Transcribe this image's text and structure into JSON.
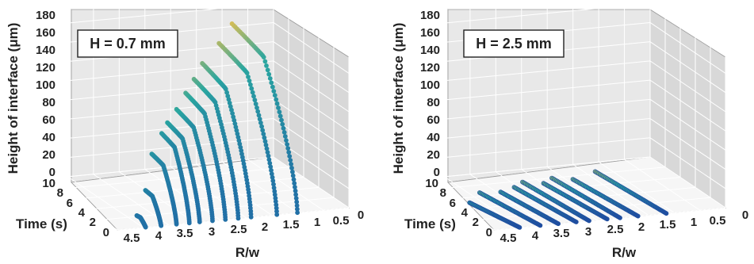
{
  "chart_data": [
    {
      "type": "scatter3d",
      "annotation": "H = 0.7 mm",
      "zlabel": "Height of interface (μm)",
      "ylabel": "Time (s)",
      "xlabel": "R/w",
      "ztick_labels": [
        "180",
        "160",
        "140",
        "120",
        "100",
        "80",
        "60",
        "40",
        "20",
        "0"
      ],
      "ytick_labels": [
        "10",
        "8",
        "6",
        "4",
        "2",
        "0"
      ],
      "xtick_labels": [
        "4.5",
        "4",
        "3.5",
        "3",
        "2.5",
        "2",
        "1.5",
        "1",
        "0.5",
        "0"
      ],
      "zlim": [
        0,
        180
      ],
      "ylim": [
        0,
        10
      ],
      "xlim": [
        0,
        4.5
      ],
      "grid": true,
      "colormap": [
        "#1f5fa8",
        "#2aa6a0",
        "#f2c14a"
      ],
      "series": [
        {
          "r": 4.05,
          "t_end": 0.5,
          "z_peak": 10
        },
        {
          "r": 3.75,
          "t_end": 1.4,
          "z_peak": 30
        },
        {
          "r": 3.45,
          "t_end": 2.6,
          "z_peak": 60
        },
        {
          "r": 3.2,
          "t_end": 3.0,
          "z_peak": 78
        },
        {
          "r": 3.0,
          "t_end": 3.6,
          "z_peak": 85
        },
        {
          "r": 2.75,
          "t_end": 4.1,
          "z_peak": 95
        },
        {
          "r": 2.5,
          "t_end": 4.6,
          "z_peak": 108
        },
        {
          "r": 2.25,
          "t_end": 5.2,
          "z_peak": 118
        },
        {
          "r": 2.0,
          "t_end": 5.8,
          "z_peak": 130
        },
        {
          "r": 1.5,
          "t_end": 7.0,
          "z_peak": 142
        },
        {
          "r": 1.1,
          "t_end": 8.0,
          "z_peak": 155
        }
      ]
    },
    {
      "type": "scatter3d",
      "annotation": "H = 2.5 mm",
      "zlabel": "Height of interface (μm)",
      "ylabel": "Time (s)",
      "xlabel": "R/w",
      "ztick_labels": [
        "180",
        "160",
        "140",
        "120",
        "100",
        "80",
        "60",
        "40",
        "20",
        "0"
      ],
      "ytick_labels": [
        "10",
        "8",
        "6",
        "4",
        "2",
        "0"
      ],
      "xtick_labels": [
        "4.5",
        "4",
        "3.5",
        "3",
        "2.5",
        "2",
        "1.5",
        "1",
        "0.5",
        "0"
      ],
      "zlim": [
        0,
        180
      ],
      "ylim": [
        0,
        10
      ],
      "xlim": [
        0,
        4.5
      ],
      "grid": true,
      "colormap": [
        "#1f4ea0",
        "#2aa6a0",
        "#f2c14a"
      ],
      "series": [
        {
          "r": 4.3,
          "t_end": 4.6,
          "z_peak": 3
        },
        {
          "r": 3.9,
          "t_end": 6.0,
          "z_peak": 4
        },
        {
          "r": 3.55,
          "t_end": 5.6,
          "z_peak": 5
        },
        {
          "r": 3.2,
          "t_end": 6.2,
          "z_peak": 5
        },
        {
          "r": 2.95,
          "t_end": 6.8,
          "z_peak": 6
        },
        {
          "r": 2.6,
          "t_end": 6.4,
          "z_peak": 5
        },
        {
          "r": 2.35,
          "t_end": 7.0,
          "z_peak": 6
        },
        {
          "r": 2.0,
          "t_end": 6.6,
          "z_peak": 5
        },
        {
          "r": 1.45,
          "t_end": 7.4,
          "z_peak": 6
        }
      ]
    }
  ]
}
